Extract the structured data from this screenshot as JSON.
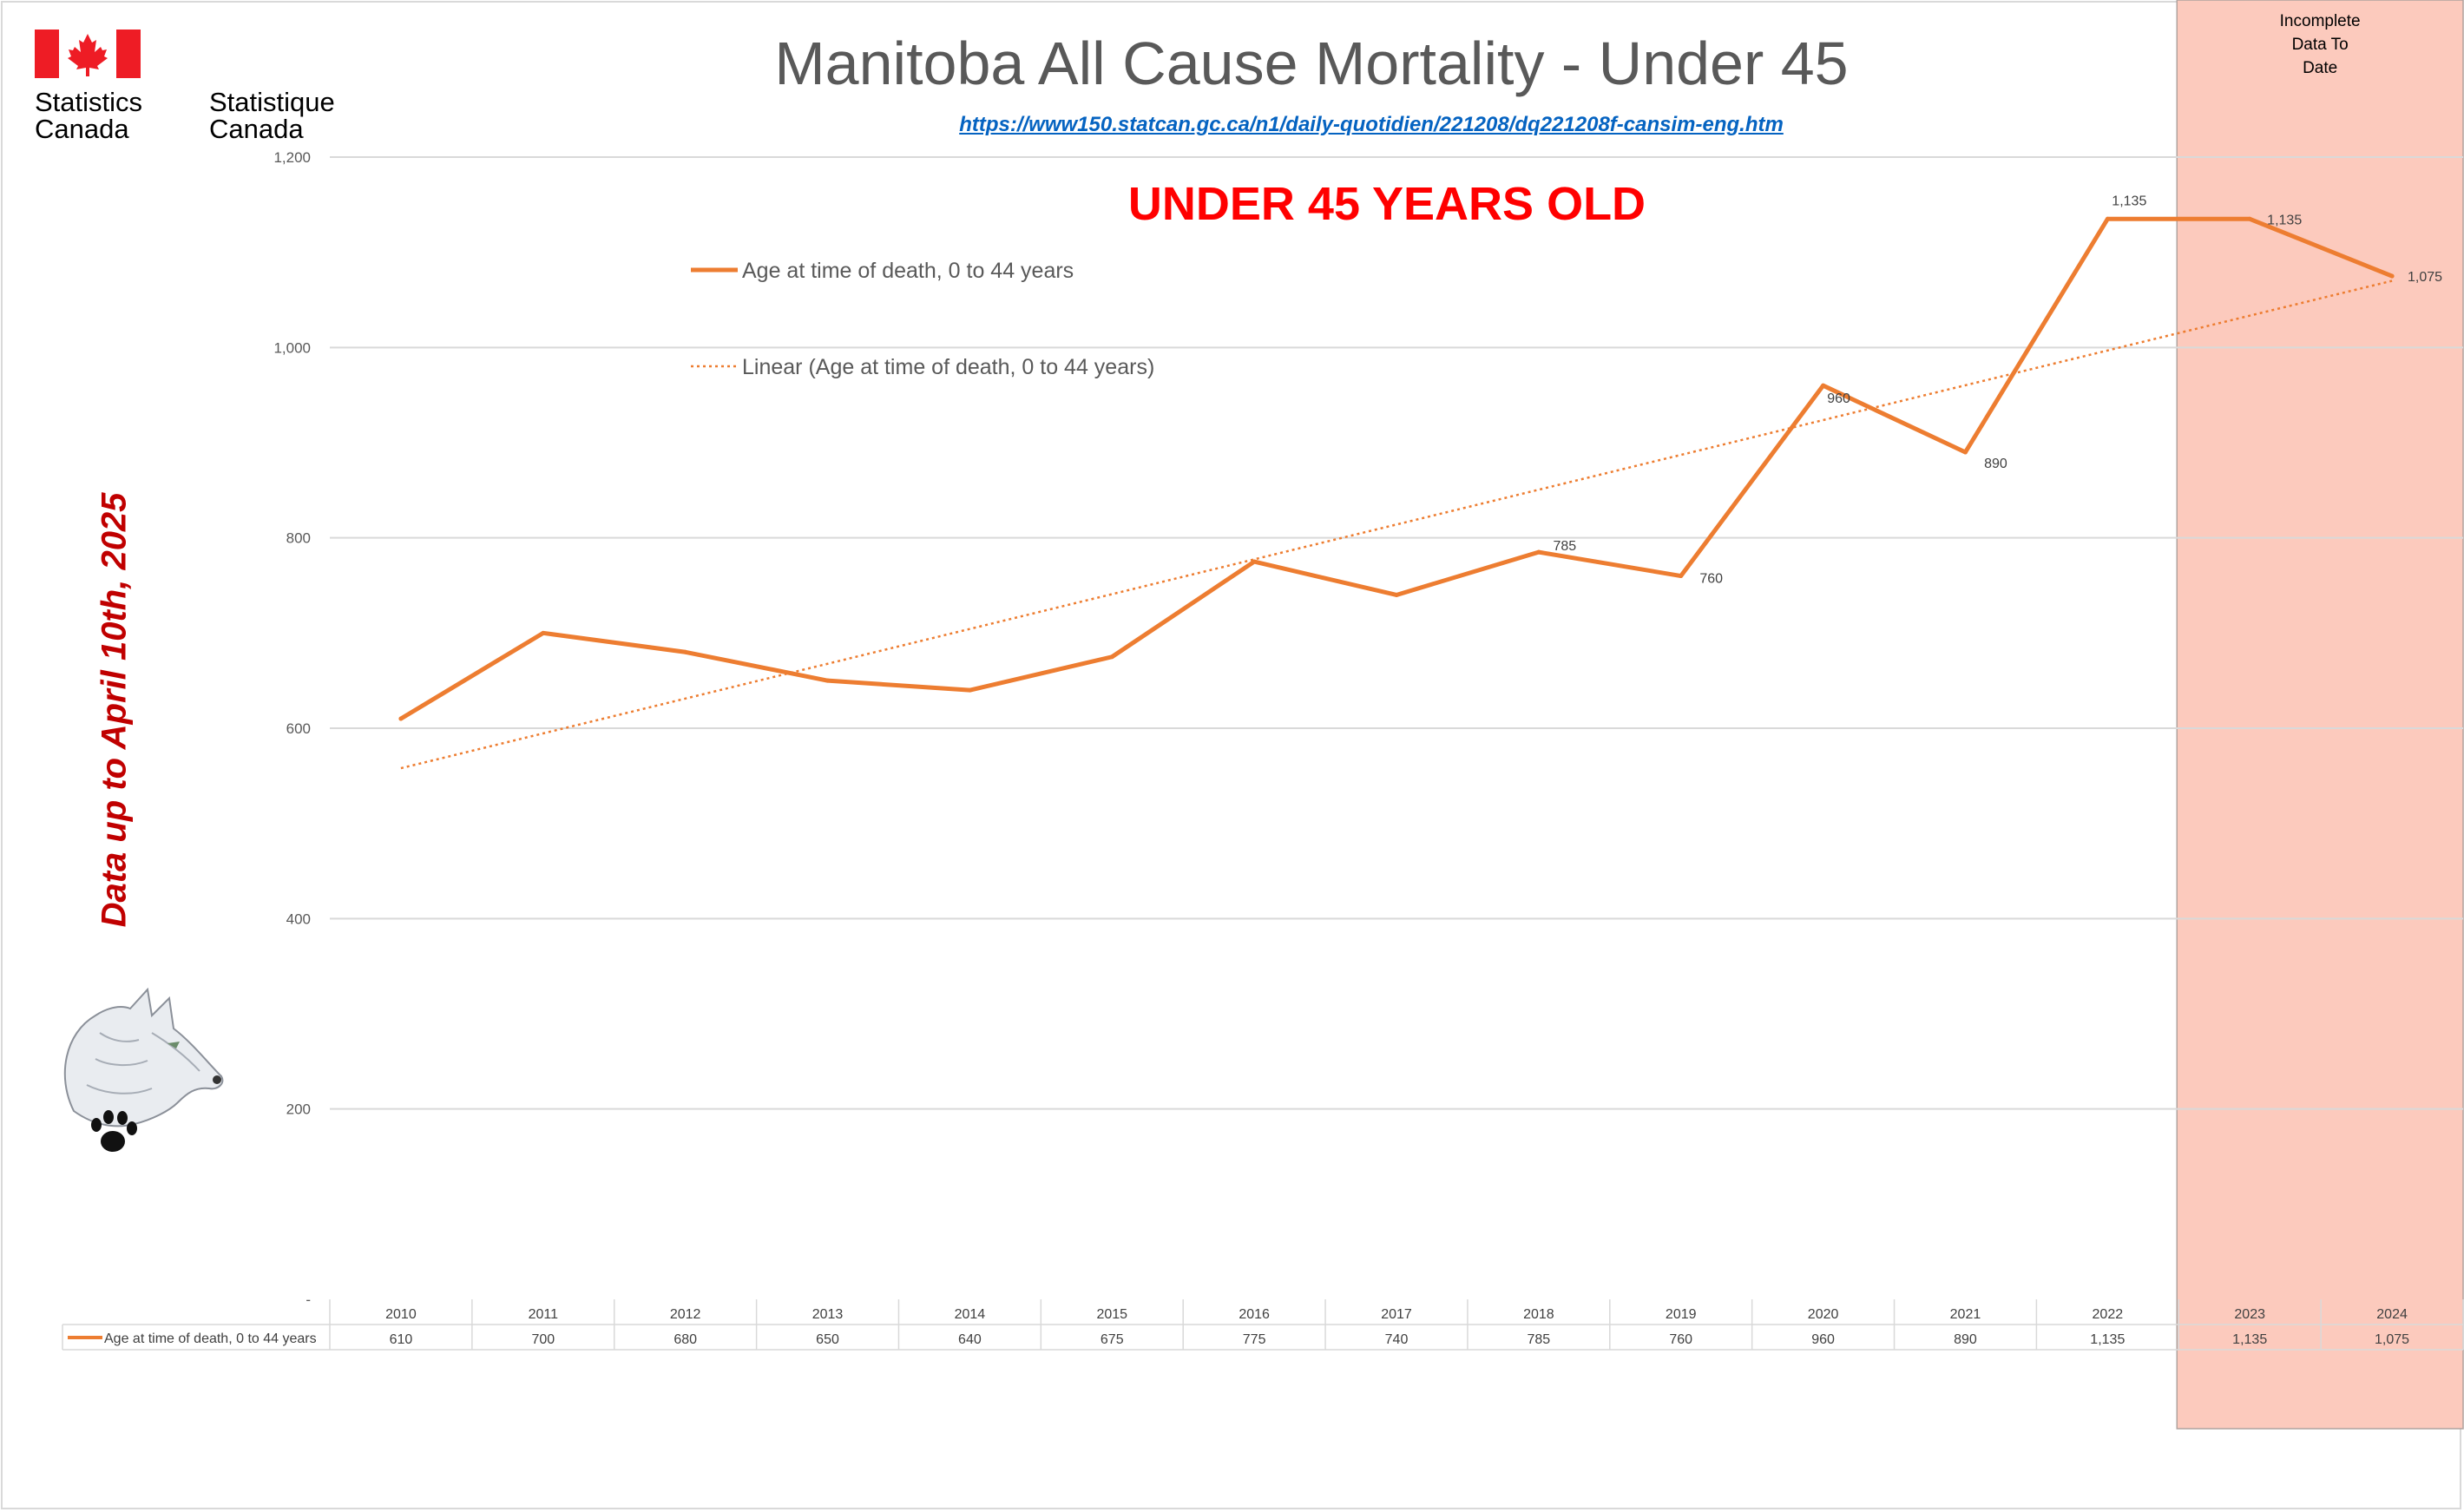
{
  "branding": {
    "statcan_en": [
      "Statistics",
      "Canada"
    ],
    "statcan_fr": [
      "Statistique",
      "Canada"
    ]
  },
  "side_note": "Data up to April 10th, 2025",
  "source_url": "https://www150.statcan.gc.ca/n1/daily-quotidien/221208/dq221208f-cansim-eng.htm",
  "chart_data": {
    "type": "line",
    "title": "Manitoba All Cause Mortality - Under 45",
    "subtitle": "UNDER 45 YEARS OLD",
    "categories": [
      "2010",
      "2011",
      "2012",
      "2013",
      "2014",
      "2015",
      "2016",
      "2017",
      "2018",
      "2019",
      "2020",
      "2021",
      "2022",
      "2023",
      "2024"
    ],
    "series": [
      {
        "name": "Age at time of death, 0 to 44 years",
        "values": [
          610,
          700,
          680,
          650,
          640,
          675,
          775,
          740,
          785,
          760,
          960,
          890,
          1135,
          1135,
          1075
        ],
        "color": "#ed7d31"
      }
    ],
    "trendline": {
      "name": "Linear (Age at time of death, 0 to 44 years)",
      "type": "linear",
      "color": "#ed7d31"
    },
    "data_labels": [
      {
        "index": 8,
        "text": "785"
      },
      {
        "index": 9,
        "text": "760"
      },
      {
        "index": 10,
        "text": "960"
      },
      {
        "index": 11,
        "text": "890"
      },
      {
        "index": 12,
        "text": "1,135"
      },
      {
        "index": 13,
        "text": "1,135"
      },
      {
        "index": 14,
        "text": "1,075"
      }
    ],
    "table_values": [
      "610",
      "700",
      "680",
      "650",
      "640",
      "675",
      "775",
      "740",
      "785",
      "760",
      "960",
      "890",
      "1,135",
      "1,135",
      "1,075"
    ],
    "ylim": [
      0,
      1200
    ],
    "yticks": [
      {
        "value": 0,
        "label": "-"
      },
      {
        "value": 200,
        "label": "200"
      },
      {
        "value": 400,
        "label": "400"
      },
      {
        "value": 600,
        "label": "600"
      },
      {
        "value": 800,
        "label": "800"
      },
      {
        "value": 1000,
        "label": "1,000"
      },
      {
        "value": 1200,
        "label": "1,200"
      }
    ],
    "grid": true,
    "legend_position": "top-left inside",
    "highlight": {
      "from_category": "2023",
      "to_category": "2024",
      "label": [
        "Incomplete",
        "Data To",
        "Date"
      ],
      "color": "#fccabd"
    }
  },
  "colors": {
    "title": "#595959",
    "subtitle": "#ff0000",
    "series": "#ed7d31",
    "grid": "#d9d9d9",
    "link": "#0563c1",
    "note": "#c00000"
  }
}
